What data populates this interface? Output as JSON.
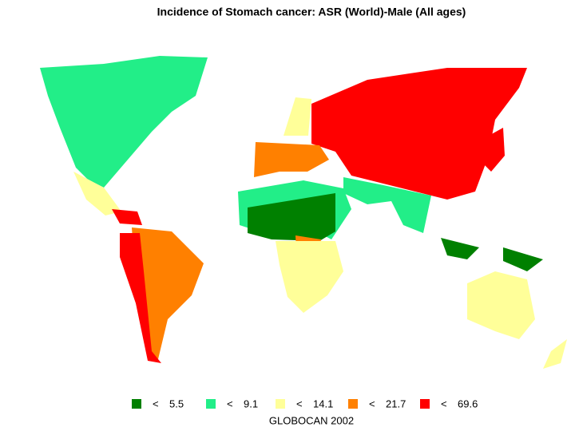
{
  "title": "Incidence of Stomach cancer: ASR (World)-Male (All ages)",
  "legend": [
    {
      "symbol": "<",
      "value": 5.5,
      "color": "#008000"
    },
    {
      "symbol": "<",
      "value": 9.1,
      "color": "#22ee88"
    },
    {
      "symbol": "<",
      "value": 14.1,
      "color": "#ffff99"
    },
    {
      "symbol": "<",
      "value": 21.7,
      "color": "#ff8000"
    },
    {
      "symbol": "<",
      "value": 69.6,
      "color": "#ff0000"
    }
  ],
  "source": "GLOBOCAN 2002"
}
